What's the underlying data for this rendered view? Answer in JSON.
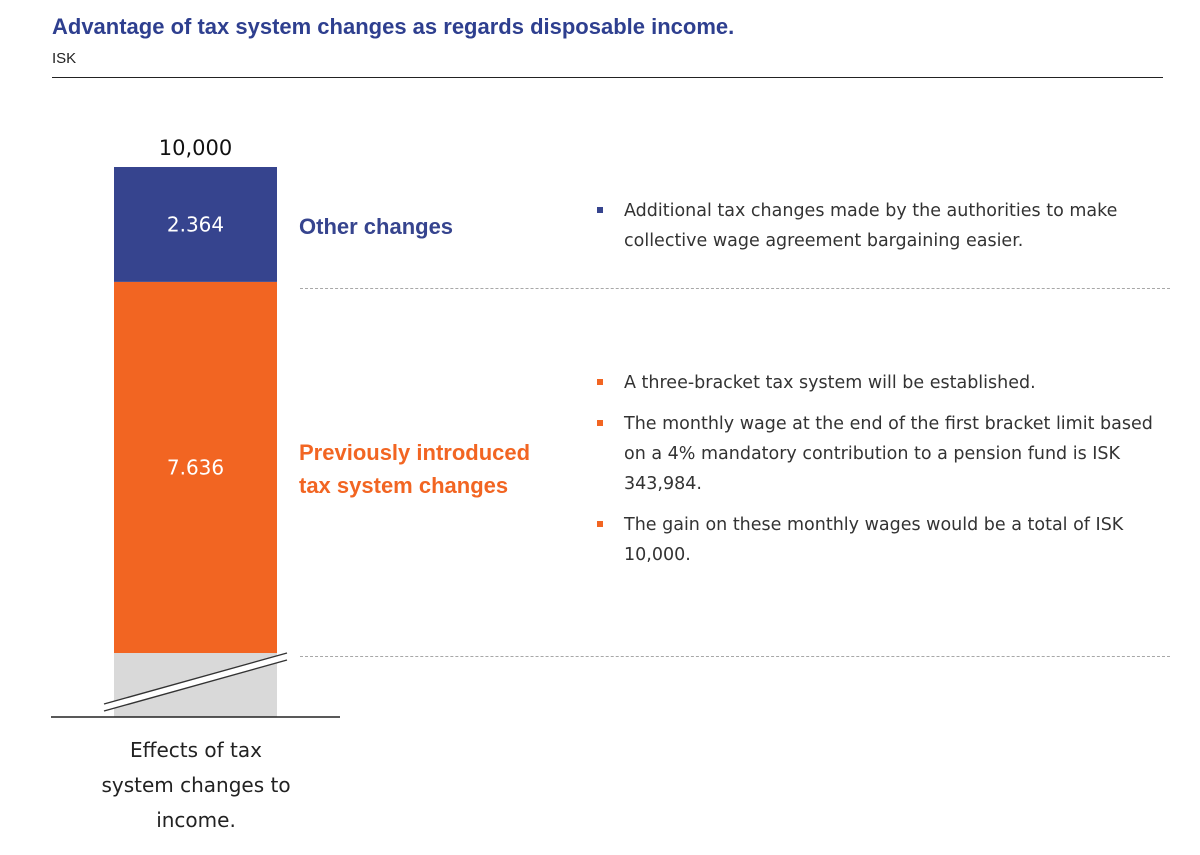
{
  "header": {
    "title": "Advantage of tax system changes as regards disposable income.",
    "unit": "ISK"
  },
  "chart_data": {
    "type": "bar",
    "stacked": true,
    "categories": [
      "Effects of tax system changes to income."
    ],
    "total_label": "10,000",
    "series": [
      {
        "name": "Previously introduced tax system changes",
        "value_label": "7.636",
        "values": [
          7636
        ],
        "color": "#f26522"
      },
      {
        "name": "Other changes",
        "value_label": "2.364",
        "values": [
          2364
        ],
        "color": "#36448e"
      }
    ],
    "axis_break": true
  },
  "legend_labels": {
    "other": "Other changes",
    "previous_line1": "Previously introduced",
    "previous_line2": "tax system changes"
  },
  "notes": {
    "other": [
      "Additional tax changes made by the authorities to make collective wage agreement bargaining easier."
    ],
    "previous": [
      "A three-bracket tax system will be established.",
      "The monthly wage at the end of the first bracket limit based on a 4% mandatory contribution to a pension fund is ISK 343,984.",
      "The gain on these monthly wages would be a total of ISK 10,000."
    ]
  },
  "xlabel_lines": [
    "Effects of tax",
    "system changes to",
    "income."
  ],
  "colors": {
    "title": "#2e3f8f",
    "other": "#36448e",
    "previous": "#f26522",
    "break": "#d9d9d9"
  }
}
